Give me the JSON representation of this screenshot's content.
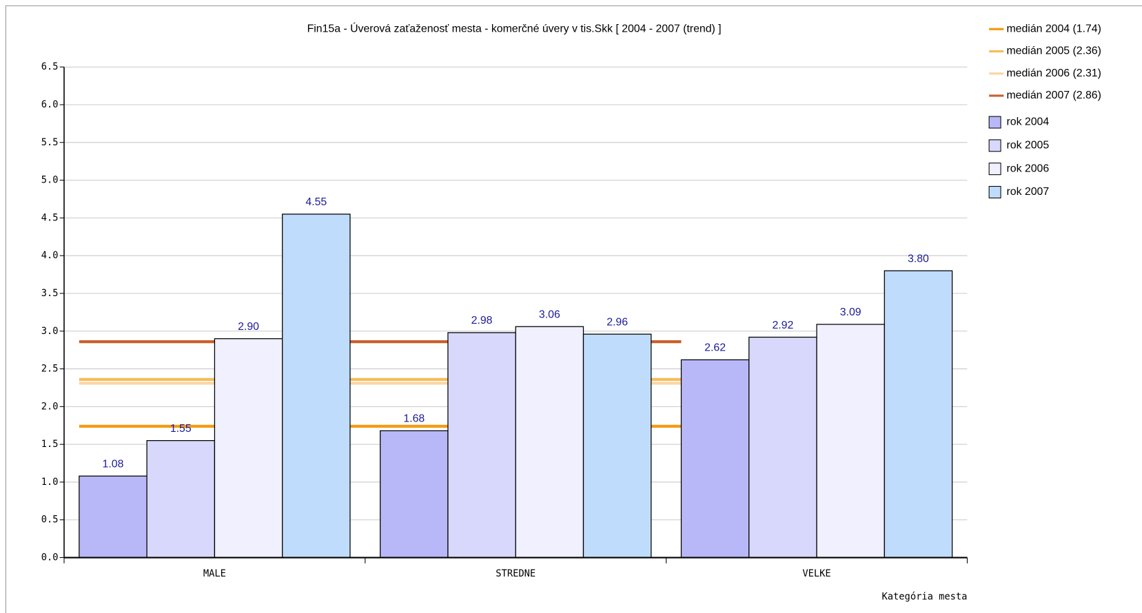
{
  "chart_data": {
    "type": "bar",
    "title": "Fin15a - Úverová zaťaženosť mesta - komerčné úvery v tis.Skk [ 2004 - 2007 (trend) ]",
    "x_label": "Kategória mesta",
    "categories": [
      "MALE",
      "STREDNE",
      "VELKE"
    ],
    "series": [
      {
        "name": "rok 2004",
        "color": "#b8b8f8",
        "values": [
          1.08,
          1.68,
          2.62
        ],
        "value_labels": [
          "1.08",
          "1.68",
          "2.62"
        ]
      },
      {
        "name": "rok 2005",
        "color": "#d8d8fc",
        "values": [
          1.55,
          2.98,
          2.92
        ],
        "value_labels": [
          "1.55",
          "2.98",
          "2.92"
        ]
      },
      {
        "name": "rok 2006",
        "color": "#f0f0ff",
        "values": [
          2.9,
          3.06,
          3.09
        ],
        "value_labels": [
          "2.90",
          "3.06",
          "3.09"
        ]
      },
      {
        "name": "rok 2007",
        "color": "#c0dcfc",
        "values": [
          4.55,
          2.96,
          3.8
        ],
        "value_labels": [
          "4.55",
          "2.96",
          "3.80"
        ]
      }
    ],
    "reference_lines": [
      {
        "name": "medián 2004 (1.74)",
        "color": "#f39c12",
        "value": 1.74
      },
      {
        "name": "medián 2005 (2.36)",
        "color": "#f6bc5c",
        "value": 2.36
      },
      {
        "name": "medián 2006 (2.31)",
        "color": "#fbd6a4",
        "value": 2.31
      },
      {
        "name": "medián 2007 (2.86)",
        "color": "#c8602c",
        "value": 2.86
      }
    ],
    "ylim": [
      0,
      6.5
    ],
    "yticks": [
      {
        "value": 0,
        "label": "0.0"
      },
      0.5,
      {
        "value": 1,
        "label": "1.0"
      },
      1.5,
      {
        "value": 2,
        "label": "2.0"
      },
      2.5,
      {
        "value": 3,
        "label": "3.0"
      },
      3.5,
      {
        "value": 4,
        "label": "4.0"
      },
      4.5,
      {
        "value": 5,
        "label": "5.0"
      },
      5.5,
      {
        "value": 6,
        "label": "6.0"
      },
      6.5
    ],
    "grid": true
  }
}
